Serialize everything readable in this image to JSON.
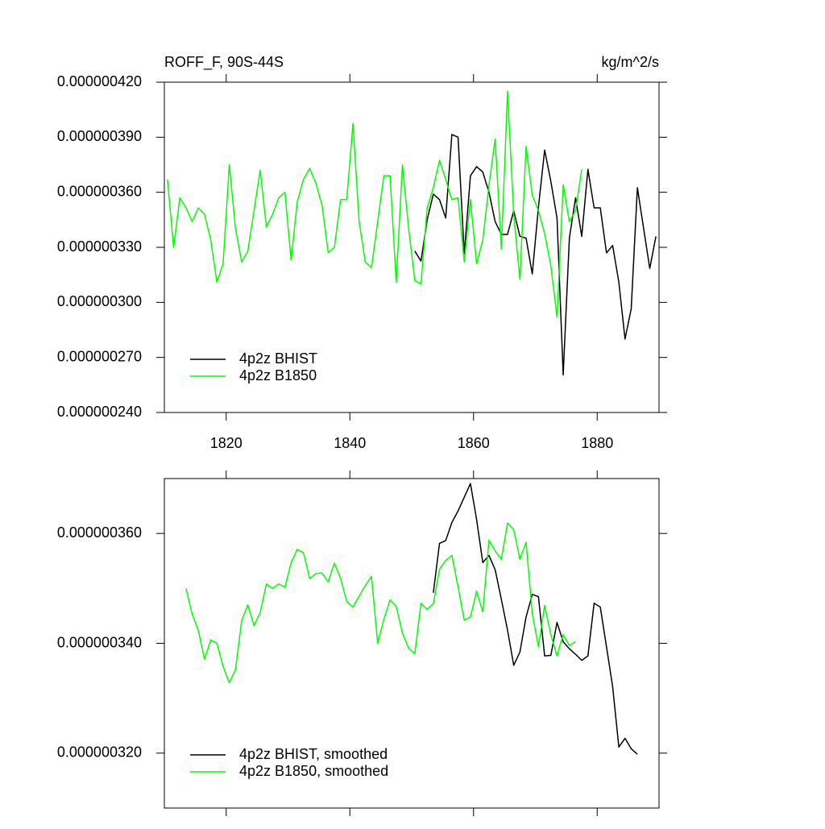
{
  "chart_data": [
    {
      "type": "line",
      "title": "ROFF_F, 90S-44S",
      "units": "kg/m^2/s",
      "xlim": [
        1810,
        1890
      ],
      "xticks": [
        1820,
        1840,
        1860,
        1880
      ],
      "ylim": [
        2.4e-07,
        4.2e-07
      ],
      "yticks": [
        {
          "value": 2.4e-07,
          "label": "0.000000240"
        },
        {
          "value": 2.7e-07,
          "label": "0.000000270"
        },
        {
          "value": 3e-07,
          "label": "0.000000300"
        },
        {
          "value": 3.3e-07,
          "label": "0.000000330"
        },
        {
          "value": 3.6e-07,
          "label": "0.000000360"
        },
        {
          "value": 3.9e-07,
          "label": "0.000000390"
        },
        {
          "value": 4.2e-07,
          "label": "0.000000420"
        }
      ],
      "legend": "lower left",
      "series": [
        {
          "name": "4p2z BHIST",
          "color": "#000000",
          "x": [
            1850.5,
            1851.5,
            1852.5,
            1853.5,
            1854.5,
            1855.5,
            1856.5,
            1857.5,
            1858.5,
            1859.5,
            1860.5,
            1861.5,
            1862.5,
            1863.5,
            1864.5,
            1865.5,
            1866.5,
            1867.5,
            1868.5,
            1869.5,
            1870.5,
            1871.5,
            1872.5,
            1873.5,
            1874.5,
            1875.5,
            1876.5,
            1877.5,
            1878.5,
            1879.5,
            1880.5,
            1881.5,
            1882.5,
            1883.5,
            1884.5,
            1885.5,
            1886.5,
            1887.5,
            1888.5,
            1889.5
          ],
          "values": [
            3.28e-07,
            3.225e-07,
            3.45e-07,
            3.59e-07,
            3.56e-07,
            3.46e-07,
            3.915e-07,
            3.9e-07,
            3.265e-07,
            3.69e-07,
            3.74e-07,
            3.71e-07,
            3.6e-07,
            3.44e-07,
            3.37e-07,
            3.37e-07,
            3.5e-07,
            3.36e-07,
            3.35e-07,
            3.155e-07,
            3.52e-07,
            3.83e-07,
            3.66e-07,
            3.46e-07,
            2.605e-07,
            3.35e-07,
            3.57e-07,
            3.36e-07,
            3.725e-07,
            3.515e-07,
            3.515e-07,
            3.27e-07,
            3.31e-07,
            3.11e-07,
            2.8e-07,
            2.965e-07,
            3.625e-07,
            3.405e-07,
            3.185e-07,
            3.36e-07
          ]
        },
        {
          "name": "4p2z B1850",
          "color": "#00ff00",
          "x": [
            1810.5,
            1811.5,
            1812.5,
            1813.5,
            1814.5,
            1815.5,
            1816.5,
            1817.5,
            1818.5,
            1819.5,
            1820.5,
            1821.5,
            1822.5,
            1823.5,
            1824.5,
            1825.5,
            1826.5,
            1827.5,
            1828.5,
            1829.5,
            1830.5,
            1831.5,
            1832.5,
            1833.5,
            1834.5,
            1835.5,
            1836.5,
            1837.5,
            1838.5,
            1839.5,
            1840.5,
            1841.5,
            1842.5,
            1843.5,
            1844.5,
            1845.5,
            1846.5,
            1847.5,
            1848.5,
            1849.5,
            1850.5,
            1851.5,
            1852.5,
            1853.5,
            1854.5,
            1855.5,
            1856.5,
            1857.5,
            1858.5,
            1859.5,
            1860.5,
            1861.5,
            1862.5,
            1863.5,
            1864.5,
            1865.5,
            1866.5,
            1867.5,
            1868.5,
            1869.5,
            1870.5,
            1871.5,
            1872.5,
            1873.5,
            1874.5,
            1875.5,
            1876.5,
            1877.5
          ],
          "values": [
            3.67e-07,
            3.3e-07,
            3.57e-07,
            3.515e-07,
            3.44e-07,
            3.515e-07,
            3.48e-07,
            3.34e-07,
            3.11e-07,
            3.21e-07,
            3.75e-07,
            3.405e-07,
            3.22e-07,
            3.28e-07,
            3.5e-07,
            3.72e-07,
            3.41e-07,
            3.48e-07,
            3.57e-07,
            3.6e-07,
            3.23e-07,
            3.55e-07,
            3.67e-07,
            3.73e-07,
            3.65e-07,
            3.53e-07,
            3.27e-07,
            3.3e-07,
            3.56e-07,
            3.56e-07,
            3.975e-07,
            3.44e-07,
            3.22e-07,
            3.19e-07,
            3.44e-07,
            3.69e-07,
            3.69e-07,
            3.11e-07,
            3.75e-07,
            3.405e-07,
            3.12e-07,
            3.1e-07,
            3.515e-07,
            3.625e-07,
            3.775e-07,
            3.67e-07,
            3.56e-07,
            3.57e-07,
            3.22e-07,
            3.56e-07,
            3.21e-07,
            3.34e-07,
            3.64e-07,
            3.89e-07,
            3.29e-07,
            4.15e-07,
            3.48e-07,
            3.125e-07,
            3.85e-07,
            3.585e-07,
            3.5e-07,
            3.375e-07,
            3.2e-07,
            2.92e-07,
            3.64e-07,
            3.44e-07,
            3.5e-07,
            3.725e-07
          ]
        }
      ]
    },
    {
      "type": "line",
      "xlim": [
        1810,
        1890
      ],
      "ylim": [
        3.1e-07,
        3.7e-07
      ],
      "yticks": [
        {
          "value": 3.2e-07,
          "label": "0.000000320"
        },
        {
          "value": 3.4e-07,
          "label": "0.000000340"
        },
        {
          "value": 3.6e-07,
          "label": "0.000000360"
        }
      ],
      "legend": "lower left",
      "series": [
        {
          "name": "4p2z BHIST, smoothed",
          "color": "#000000",
          "x": [
            1853.5,
            1854.5,
            1855.5,
            1856.5,
            1857.5,
            1858.5,
            1859.5,
            1860.5,
            1861.5,
            1862.5,
            1863.5,
            1864.5,
            1865.5,
            1866.5,
            1867.5,
            1868.5,
            1869.5,
            1870.5,
            1871.5,
            1872.5,
            1873.5,
            1874.5,
            1875.5,
            1876.5,
            1877.5,
            1878.5,
            1879.5,
            1880.5,
            1881.5,
            1882.5,
            1883.5,
            1884.5,
            1885.5,
            1886.5
          ],
          "values": [
            3.492e-07,
            3.582e-07,
            3.587e-07,
            3.62e-07,
            3.641e-07,
            3.666e-07,
            3.691e-07,
            3.625e-07,
            3.547e-07,
            3.56e-07,
            3.534e-07,
            3.48e-07,
            3.424e-07,
            3.36e-07,
            3.384e-07,
            3.448e-07,
            3.489e-07,
            3.485e-07,
            3.377e-07,
            3.378e-07,
            3.438e-07,
            3.403e-07,
            3.39e-07,
            3.38e-07,
            3.369e-07,
            3.377e-07,
            3.473e-07,
            3.466e-07,
            3.394e-07,
            3.321e-07,
            3.211e-07,
            3.227e-07,
            3.208e-07,
            3.198e-07
          ]
        },
        {
          "name": "4p2z B1850, smoothed",
          "color": "#00ff00",
          "x": [
            1813.5,
            1814.5,
            1815.5,
            1816.5,
            1817.5,
            1818.5,
            1819.5,
            1820.5,
            1821.5,
            1822.5,
            1823.5,
            1824.5,
            1825.5,
            1826.5,
            1827.5,
            1828.5,
            1829.5,
            1830.5,
            1831.5,
            1832.5,
            1833.5,
            1834.5,
            1835.5,
            1836.5,
            1837.5,
            1838.5,
            1839.5,
            1840.5,
            1841.5,
            1842.5,
            1843.5,
            1844.5,
            1845.5,
            1846.5,
            1847.5,
            1848.5,
            1849.5,
            1850.5,
            1851.5,
            1852.5,
            1853.5,
            1854.5,
            1855.5,
            1856.5,
            1857.5,
            1858.5,
            1859.5,
            1860.5,
            1861.5,
            1862.5,
            1863.5,
            1864.5,
            1865.5,
            1866.5,
            1867.5,
            1868.5,
            1869.5,
            1870.5,
            1871.5,
            1872.5,
            1873.5,
            1874.5,
            1875.5,
            1876.5
          ],
          "values": [
            3.5e-07,
            3.453e-07,
            3.423e-07,
            3.371e-07,
            3.406e-07,
            3.4e-07,
            3.358e-07,
            3.328e-07,
            3.352e-07,
            3.441e-07,
            3.47e-07,
            3.432e-07,
            3.456e-07,
            3.508e-07,
            3.5e-07,
            3.508e-07,
            3.502e-07,
            3.547e-07,
            3.571e-07,
            3.565e-07,
            3.518e-07,
            3.527e-07,
            3.528e-07,
            3.512e-07,
            3.546e-07,
            3.518e-07,
            3.476e-07,
            3.466e-07,
            3.486e-07,
            3.505e-07,
            3.522e-07,
            3.4e-07,
            3.444e-07,
            3.479e-07,
            3.467e-07,
            3.419e-07,
            3.391e-07,
            3.381e-07,
            3.473e-07,
            3.462e-07,
            3.472e-07,
            3.535e-07,
            3.551e-07,
            3.56e-07,
            3.503e-07,
            3.442e-07,
            3.448e-07,
            3.495e-07,
            3.457e-07,
            3.588e-07,
            3.568e-07,
            3.553e-07,
            3.619e-07,
            3.607e-07,
            3.553e-07,
            3.584e-07,
            3.454e-07,
            3.394e-07,
            3.469e-07,
            3.416e-07,
            3.377e-07,
            3.416e-07,
            3.396e-07,
            3.403e-07
          ]
        }
      ]
    }
  ]
}
